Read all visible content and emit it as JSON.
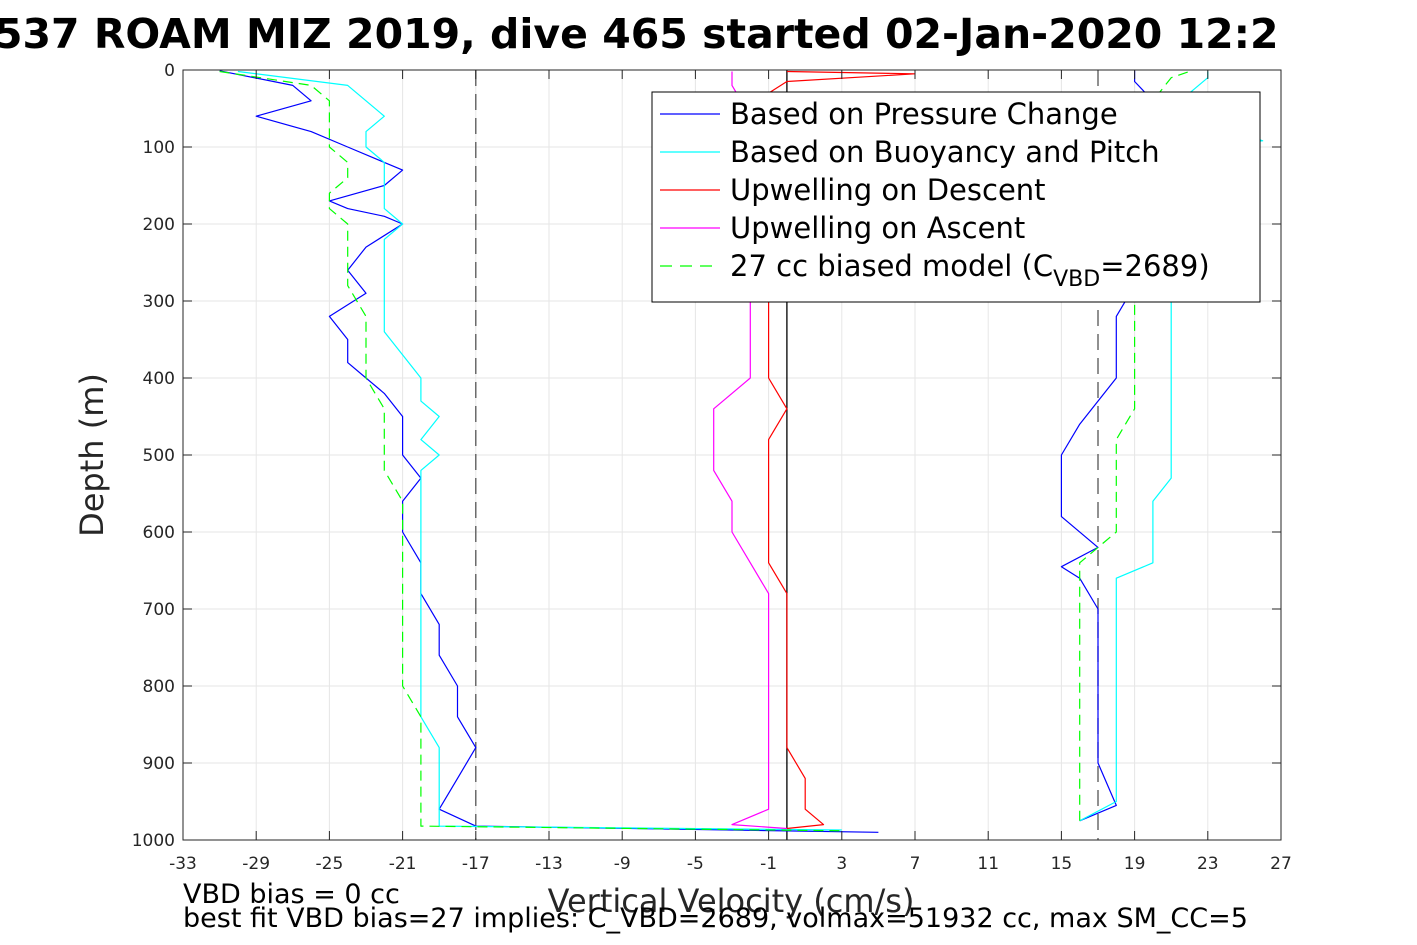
{
  "title": "537 ROAM MIZ 2019, dive 465 started 02-Jan-2020 12:2",
  "chart_data": {
    "type": "line",
    "title": "537 ROAM MIZ 2019, dive 465 started 02-Jan-2020 12:2",
    "xlabel": "Vertical Velocity (cm/s)",
    "ylabel": "Depth (m)",
    "xlim": [
      -33,
      27
    ],
    "ylim": [
      0,
      1000
    ],
    "y_reversed": true,
    "grid": true,
    "legend_position": "top-right",
    "x_ticks": [
      -33,
      -29,
      -25,
      -21,
      -17,
      -13,
      -9,
      -5,
      -1,
      3,
      7,
      11,
      15,
      19,
      23,
      27
    ],
    "y_ticks": [
      0,
      100,
      200,
      300,
      400,
      500,
      600,
      700,
      800,
      900,
      1000
    ],
    "series": [
      {
        "name": "Based on Pressure Change",
        "color": "#0000ff",
        "style": "solid",
        "part": "descent",
        "points": [
          [
            -31,
            1
          ],
          [
            -27,
            20
          ],
          [
            -26,
            40
          ],
          [
            -29,
            60
          ],
          [
            -26,
            80
          ],
          [
            -24,
            100
          ],
          [
            -22,
            120
          ],
          [
            -21,
            130
          ],
          [
            -22,
            150
          ],
          [
            -25,
            170
          ],
          [
            -24,
            180
          ],
          [
            -22,
            190
          ],
          [
            -21,
            200
          ],
          [
            -23,
            230
          ],
          [
            -24,
            260
          ],
          [
            -23,
            290
          ],
          [
            -25,
            320
          ],
          [
            -24,
            350
          ],
          [
            -24,
            380
          ],
          [
            -23,
            400
          ],
          [
            -22,
            420
          ],
          [
            -21,
            450
          ],
          [
            -21,
            480
          ],
          [
            -21,
            500
          ],
          [
            -20,
            530
          ],
          [
            -21,
            560
          ],
          [
            -21,
            600
          ],
          [
            -20,
            640
          ],
          [
            -20,
            680
          ],
          [
            -19,
            720
          ],
          [
            -19,
            760
          ],
          [
            -18,
            800
          ],
          [
            -18,
            840
          ],
          [
            -17,
            880
          ],
          [
            -18,
            920
          ],
          [
            -19,
            960
          ],
          [
            -17,
            982
          ],
          [
            5,
            990
          ]
        ]
      },
      {
        "name": "Based on Pressure Change",
        "color": "#0000ff",
        "style": "solid",
        "part": "ascent",
        "points": [
          [
            16,
            975
          ],
          [
            18,
            955
          ],
          [
            17,
            900
          ],
          [
            17,
            850
          ],
          [
            17,
            800
          ],
          [
            17,
            750
          ],
          [
            17,
            700
          ],
          [
            16,
            660
          ],
          [
            15,
            645
          ],
          [
            17,
            620
          ],
          [
            15,
            580
          ],
          [
            15,
            540
          ],
          [
            15,
            500
          ],
          [
            16,
            460
          ],
          [
            17,
            430
          ],
          [
            18,
            400
          ],
          [
            18,
            360
          ],
          [
            18,
            320
          ],
          [
            19,
            280
          ],
          [
            19,
            240
          ],
          [
            19,
            200
          ],
          [
            19,
            160
          ],
          [
            19,
            120
          ],
          [
            19,
            80
          ],
          [
            20,
            40
          ],
          [
            19,
            15
          ],
          [
            19,
            1
          ]
        ]
      },
      {
        "name": "Based on Buoyancy and Pitch",
        "color": "#00ffff",
        "style": "solid",
        "part": "descent",
        "points": [
          [
            -30,
            2
          ],
          [
            -24,
            20
          ],
          [
            -23,
            40
          ],
          [
            -22,
            60
          ],
          [
            -23,
            80
          ],
          [
            -23,
            100
          ],
          [
            -22,
            120
          ],
          [
            -22,
            140
          ],
          [
            -22,
            160
          ],
          [
            -22,
            180
          ],
          [
            -21,
            200
          ],
          [
            -22,
            220
          ],
          [
            -22,
            250
          ],
          [
            -22,
            280
          ],
          [
            -22,
            310
          ],
          [
            -22,
            340
          ],
          [
            -21,
            370
          ],
          [
            -20,
            400
          ],
          [
            -20,
            430
          ],
          [
            -19,
            450
          ],
          [
            -20,
            480
          ],
          [
            -19,
            500
          ],
          [
            -20,
            520
          ],
          [
            -20,
            560
          ],
          [
            -20,
            600
          ],
          [
            -20,
            640
          ],
          [
            -20,
            680
          ],
          [
            -20,
            720
          ],
          [
            -20,
            760
          ],
          [
            -20,
            800
          ],
          [
            -20,
            840
          ],
          [
            -19,
            880
          ],
          [
            -19,
            920
          ],
          [
            -19,
            960
          ],
          [
            -19,
            982
          ],
          [
            3,
            987
          ]
        ]
      },
      {
        "name": "Based on Buoyancy and Pitch",
        "color": "#00ffff",
        "style": "solid",
        "part": "ascent",
        "points": [
          [
            16,
            975
          ],
          [
            18,
            950
          ],
          [
            18,
            900
          ],
          [
            18,
            850
          ],
          [
            18,
            800
          ],
          [
            18,
            750
          ],
          [
            18,
            700
          ],
          [
            18,
            660
          ],
          [
            20,
            640
          ],
          [
            20,
            600
          ],
          [
            20,
            560
          ],
          [
            21,
            530
          ],
          [
            21,
            500
          ],
          [
            21,
            460
          ],
          [
            21,
            420
          ],
          [
            21,
            380
          ],
          [
            21,
            340
          ],
          [
            21,
            300
          ],
          [
            21,
            260
          ],
          [
            21,
            220
          ],
          [
            21,
            180
          ],
          [
            21,
            140
          ],
          [
            22,
            100
          ],
          [
            26,
            92
          ],
          [
            22,
            60
          ],
          [
            22,
            30
          ],
          [
            23,
            10
          ],
          [
            23,
            2
          ]
        ]
      },
      {
        "name": "Upwelling on Descent",
        "color": "#ff0000",
        "style": "solid",
        "points": [
          [
            0,
            2
          ],
          [
            7,
            5
          ],
          [
            0,
            15
          ],
          [
            -1,
            30
          ],
          [
            -1,
            60
          ],
          [
            -1,
            100
          ],
          [
            -1,
            150
          ],
          [
            -1,
            200
          ],
          [
            -1,
            250
          ],
          [
            -1,
            300
          ],
          [
            -1,
            350
          ],
          [
            -1,
            400
          ],
          [
            0,
            440
          ],
          [
            -1,
            480
          ],
          [
            -1,
            520
          ],
          [
            -1,
            560
          ],
          [
            -1,
            600
          ],
          [
            -1,
            640
          ],
          [
            0,
            680
          ],
          [
            0,
            720
          ],
          [
            0,
            760
          ],
          [
            0,
            800
          ],
          [
            0,
            840
          ],
          [
            0,
            880
          ],
          [
            1,
            920
          ],
          [
            1,
            960
          ],
          [
            2,
            980
          ],
          [
            0,
            985
          ]
        ]
      },
      {
        "name": "Upwelling on Ascent",
        "color": "#ff00ff",
        "style": "solid",
        "points": [
          [
            -3,
            2
          ],
          [
            -3,
            20
          ],
          [
            -2,
            60
          ],
          [
            -2,
            100
          ],
          [
            -2,
            150
          ],
          [
            -2,
            200
          ],
          [
            -2,
            250
          ],
          [
            -2,
            300
          ],
          [
            -2,
            350
          ],
          [
            -2,
            400
          ],
          [
            -4,
            440
          ],
          [
            -4,
            480
          ],
          [
            -4,
            520
          ],
          [
            -3,
            560
          ],
          [
            -3,
            600
          ],
          [
            -2,
            640
          ],
          [
            -1,
            680
          ],
          [
            -1,
            720
          ],
          [
            -1,
            760
          ],
          [
            -1,
            800
          ],
          [
            -1,
            840
          ],
          [
            -1,
            880
          ],
          [
            -1,
            920
          ],
          [
            -1,
            960
          ],
          [
            -3,
            980
          ],
          [
            0,
            985
          ]
        ]
      },
      {
        "name": "27 cc biased model (C_VBD=2689)",
        "color": "#00ff00",
        "style": "dashed",
        "part": "descent",
        "points": [
          [
            -31,
            2
          ],
          [
            -26,
            20
          ],
          [
            -25,
            40
          ],
          [
            -25,
            60
          ],
          [
            -25,
            80
          ],
          [
            -25,
            100
          ],
          [
            -24,
            120
          ],
          [
            -24,
            140
          ],
          [
            -25,
            160
          ],
          [
            -25,
            180
          ],
          [
            -24,
            200
          ],
          [
            -24,
            240
          ],
          [
            -24,
            280
          ],
          [
            -23,
            320
          ],
          [
            -23,
            360
          ],
          [
            -23,
            400
          ],
          [
            -22,
            440
          ],
          [
            -22,
            480
          ],
          [
            -22,
            520
          ],
          [
            -21,
            560
          ],
          [
            -21,
            600
          ],
          [
            -21,
            640
          ],
          [
            -21,
            680
          ],
          [
            -21,
            720
          ],
          [
            -21,
            760
          ],
          [
            -21,
            800
          ],
          [
            -20,
            840
          ],
          [
            -20,
            880
          ],
          [
            -20,
            920
          ],
          [
            -20,
            960
          ],
          [
            -20,
            982
          ],
          [
            3,
            988
          ]
        ]
      },
      {
        "name": "27 cc biased model (C_VBD=2689)",
        "color": "#00ff00",
        "style": "dashed",
        "part": "ascent",
        "points": [
          [
            16,
            975
          ],
          [
            16,
            950
          ],
          [
            16,
            900
          ],
          [
            16,
            850
          ],
          [
            16,
            800
          ],
          [
            16,
            750
          ],
          [
            16,
            700
          ],
          [
            16,
            660
          ],
          [
            16,
            640
          ],
          [
            17,
            620
          ],
          [
            18,
            600
          ],
          [
            18,
            560
          ],
          [
            18,
            520
          ],
          [
            18,
            480
          ],
          [
            19,
            440
          ],
          [
            19,
            400
          ],
          [
            19,
            360
          ],
          [
            19,
            320
          ],
          [
            19,
            280
          ],
          [
            19,
            240
          ],
          [
            19,
            200
          ],
          [
            19,
            160
          ],
          [
            19,
            120
          ],
          [
            20,
            80
          ],
          [
            20,
            40
          ],
          [
            21,
            10
          ],
          [
            22,
            2
          ]
        ]
      }
    ],
    "reference_lines": [
      {
        "x": -17,
        "color": "#555555",
        "style": "dashed"
      },
      {
        "x": 17,
        "color": "#555555",
        "style": "dashed"
      },
      {
        "x": 0,
        "color": "#000000",
        "style": "solid"
      }
    ],
    "legend": [
      {
        "label": "Based on Pressure Change",
        "color": "#0000ff",
        "style": "solid"
      },
      {
        "label": "Based on Buoyancy and Pitch",
        "color": "#00ffff",
        "style": "solid"
      },
      {
        "label": "Upwelling on Descent",
        "color": "#ff0000",
        "style": "solid"
      },
      {
        "label": "Upwelling on Ascent",
        "color": "#ff00ff",
        "style": "solid"
      },
      {
        "label": "27 cc biased model (C",
        "sub": "VBD",
        "label_end": "=2689)",
        "color": "#00ff00",
        "style": "dashed"
      }
    ]
  },
  "notes": {
    "line1": "VBD bias = 0 cc",
    "line2": "best fit VBD bias=27 implies: C_VBD=2689, volmax=51932 cc, max SM_CC=5"
  }
}
